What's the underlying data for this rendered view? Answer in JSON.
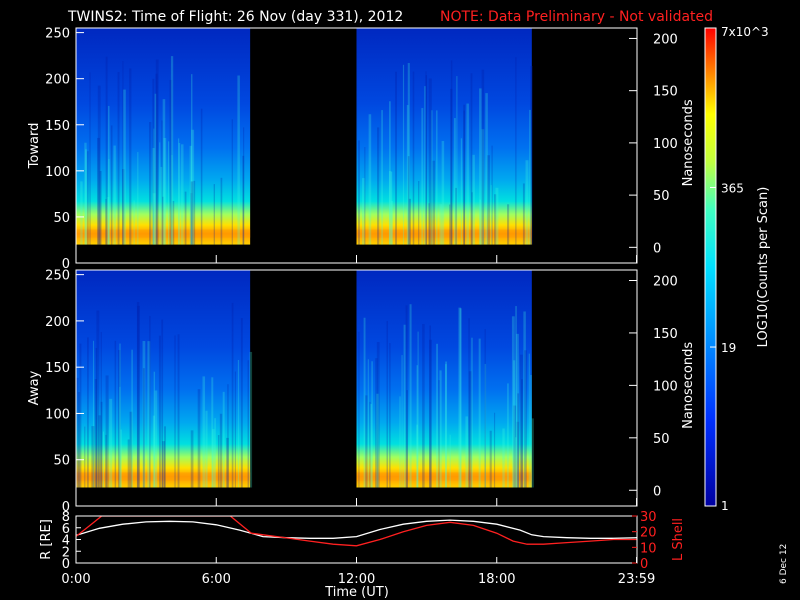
{
  "title": "TWINS2: Time of Flight: 26 Nov (day 331), 2012",
  "note": "NOTE: Data Preliminary - Not validated",
  "date_stamp": "6 Dec 12",
  "colors": {
    "red_text": "#ff2020",
    "axis": "#ffffff",
    "background": "#000000"
  },
  "chart_data": [
    {
      "type": "heatmap",
      "panel": "toward",
      "ylabel": "Toward",
      "y2label": "Nanoseconds",
      "ylim": [
        0,
        255
      ],
      "y2lim": [
        -15,
        210
      ],
      "yticks": [
        "0",
        "50",
        "100",
        "150",
        "200",
        "250"
      ],
      "y2ticks": [
        "0",
        "50",
        "100",
        "150",
        "200"
      ],
      "xlim_hours": [
        0,
        24
      ],
      "data_intervals_hours": [
        [
          0.0,
          7.45
        ],
        [
          12.0,
          19.5
        ]
      ],
      "peak_band_y": [
        20,
        45
      ],
      "colorbar": {
        "label": "LOG10(Counts per Scan)",
        "ticks": [
          "1",
          "19",
          "365",
          "7x10^3"
        ],
        "min": 1,
        "max": 7000,
        "scale": "log"
      }
    },
    {
      "type": "heatmap",
      "panel": "away",
      "ylabel": "Away",
      "y2label": "Nanoseconds",
      "ylim": [
        0,
        255
      ],
      "y2lim": [
        -15,
        210
      ],
      "yticks": [
        "0",
        "50",
        "100",
        "150",
        "200",
        "250"
      ],
      "y2ticks": [
        "0",
        "50",
        "100",
        "150",
        "200"
      ],
      "xlim_hours": [
        0,
        24
      ],
      "data_intervals_hours": [
        [
          0.0,
          7.45
        ],
        [
          12.0,
          19.5
        ]
      ],
      "peak_band_y": [
        20,
        45
      ]
    },
    {
      "type": "line",
      "panel": "orbit",
      "ylabel": "R [RE]",
      "y2label": "L Shell",
      "ylim": [
        0,
        8
      ],
      "yticks": [
        "0",
        "2",
        "4",
        "6",
        "8"
      ],
      "y2lim": [
        0,
        30
      ],
      "y2ticks": [
        "0",
        "10",
        "20",
        "30"
      ],
      "xlabel": "Time (UT)",
      "xticks": [
        "0:00",
        "6:00",
        "12:00",
        "18:00",
        "23:59"
      ],
      "xtick_hours": [
        0,
        6,
        12,
        18,
        23.98
      ],
      "series": [
        {
          "name": "R [RE]",
          "color": "#ffffff",
          "axis": "left",
          "x": [
            0,
            1,
            2,
            3,
            4,
            5,
            6,
            7,
            8,
            9,
            10,
            11,
            12,
            13,
            14,
            15,
            16,
            17,
            18,
            19,
            19.5,
            20,
            21,
            22,
            23,
            24
          ],
          "y": [
            4.7,
            5.9,
            6.6,
            7.0,
            7.1,
            7.0,
            6.5,
            5.6,
            4.5,
            4.3,
            4.2,
            4.2,
            4.5,
            5.7,
            6.6,
            7.1,
            7.3,
            7.1,
            6.6,
            5.6,
            4.8,
            4.5,
            4.3,
            4.2,
            4.2,
            4.3
          ]
        },
        {
          "name": "L Shell",
          "color": "#ff2020",
          "axis": "right",
          "x": [
            0,
            0.6,
            1.1,
            6.6,
            7.5,
            8,
            9,
            10,
            11,
            12,
            13,
            14,
            15,
            16,
            17,
            18,
            18.7,
            19.3,
            20,
            21,
            22,
            23,
            24
          ],
          "y": [
            17,
            24,
            30,
            30,
            19,
            18,
            16,
            14,
            12,
            11,
            15,
            20,
            24,
            26,
            24,
            19,
            14,
            12,
            12,
            13,
            14,
            15,
            15
          ]
        }
      ]
    }
  ]
}
